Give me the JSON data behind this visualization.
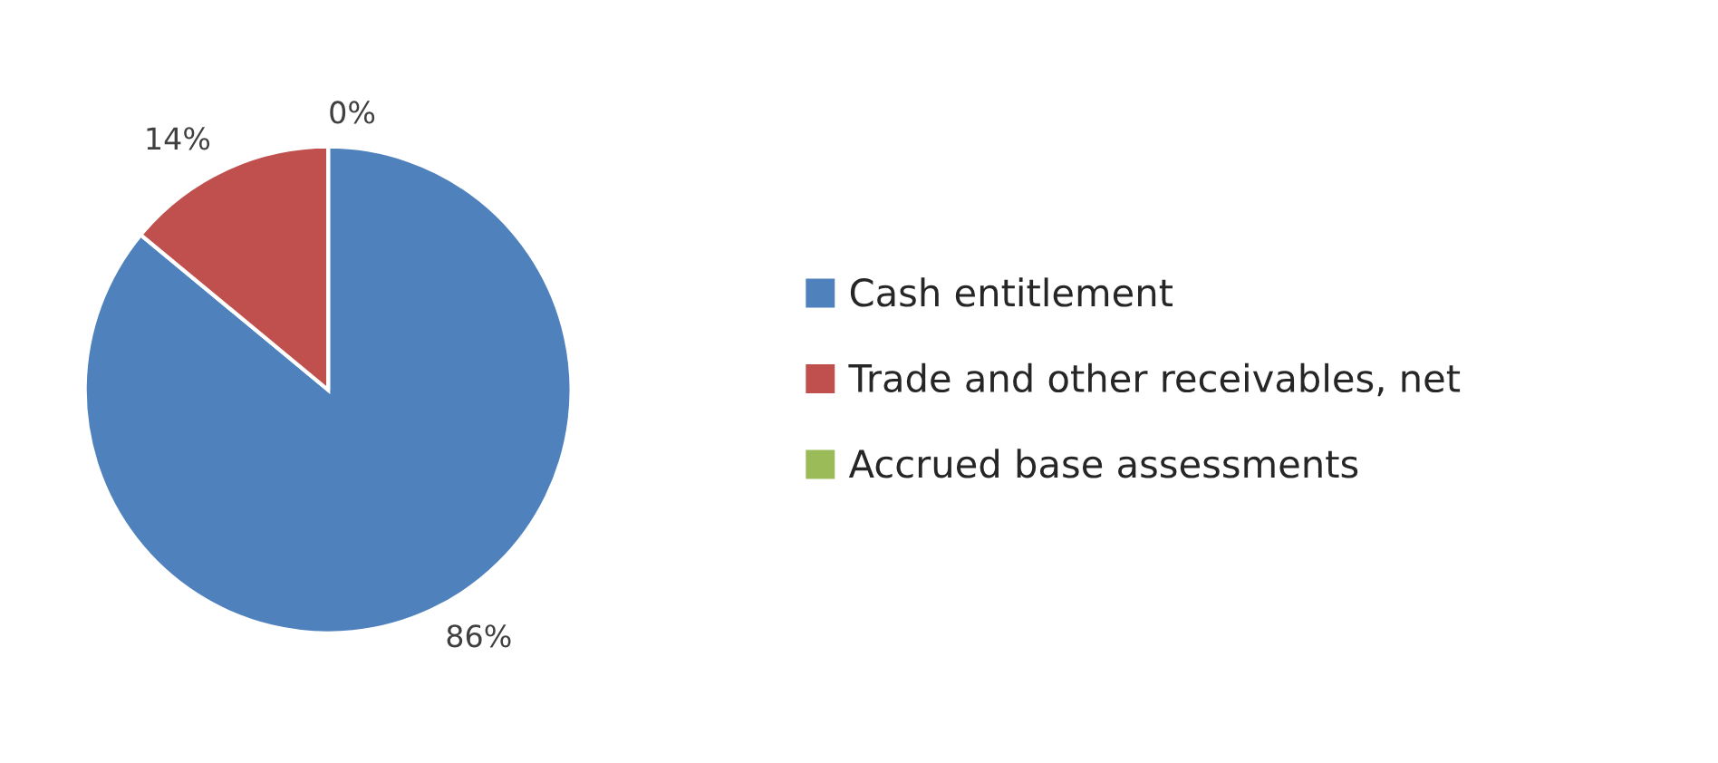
{
  "chart_data": {
    "type": "pie",
    "categories": [
      "Cash entitlement",
      "Trade and other receivables, net",
      "Accrued base assessments"
    ],
    "values": [
      86,
      14,
      0
    ],
    "colors": [
      "#4f81bd",
      "#c0504d",
      "#9bbb59"
    ],
    "value_labels": [
      "86%",
      "14%",
      "0%"
    ],
    "legend": "right"
  }
}
